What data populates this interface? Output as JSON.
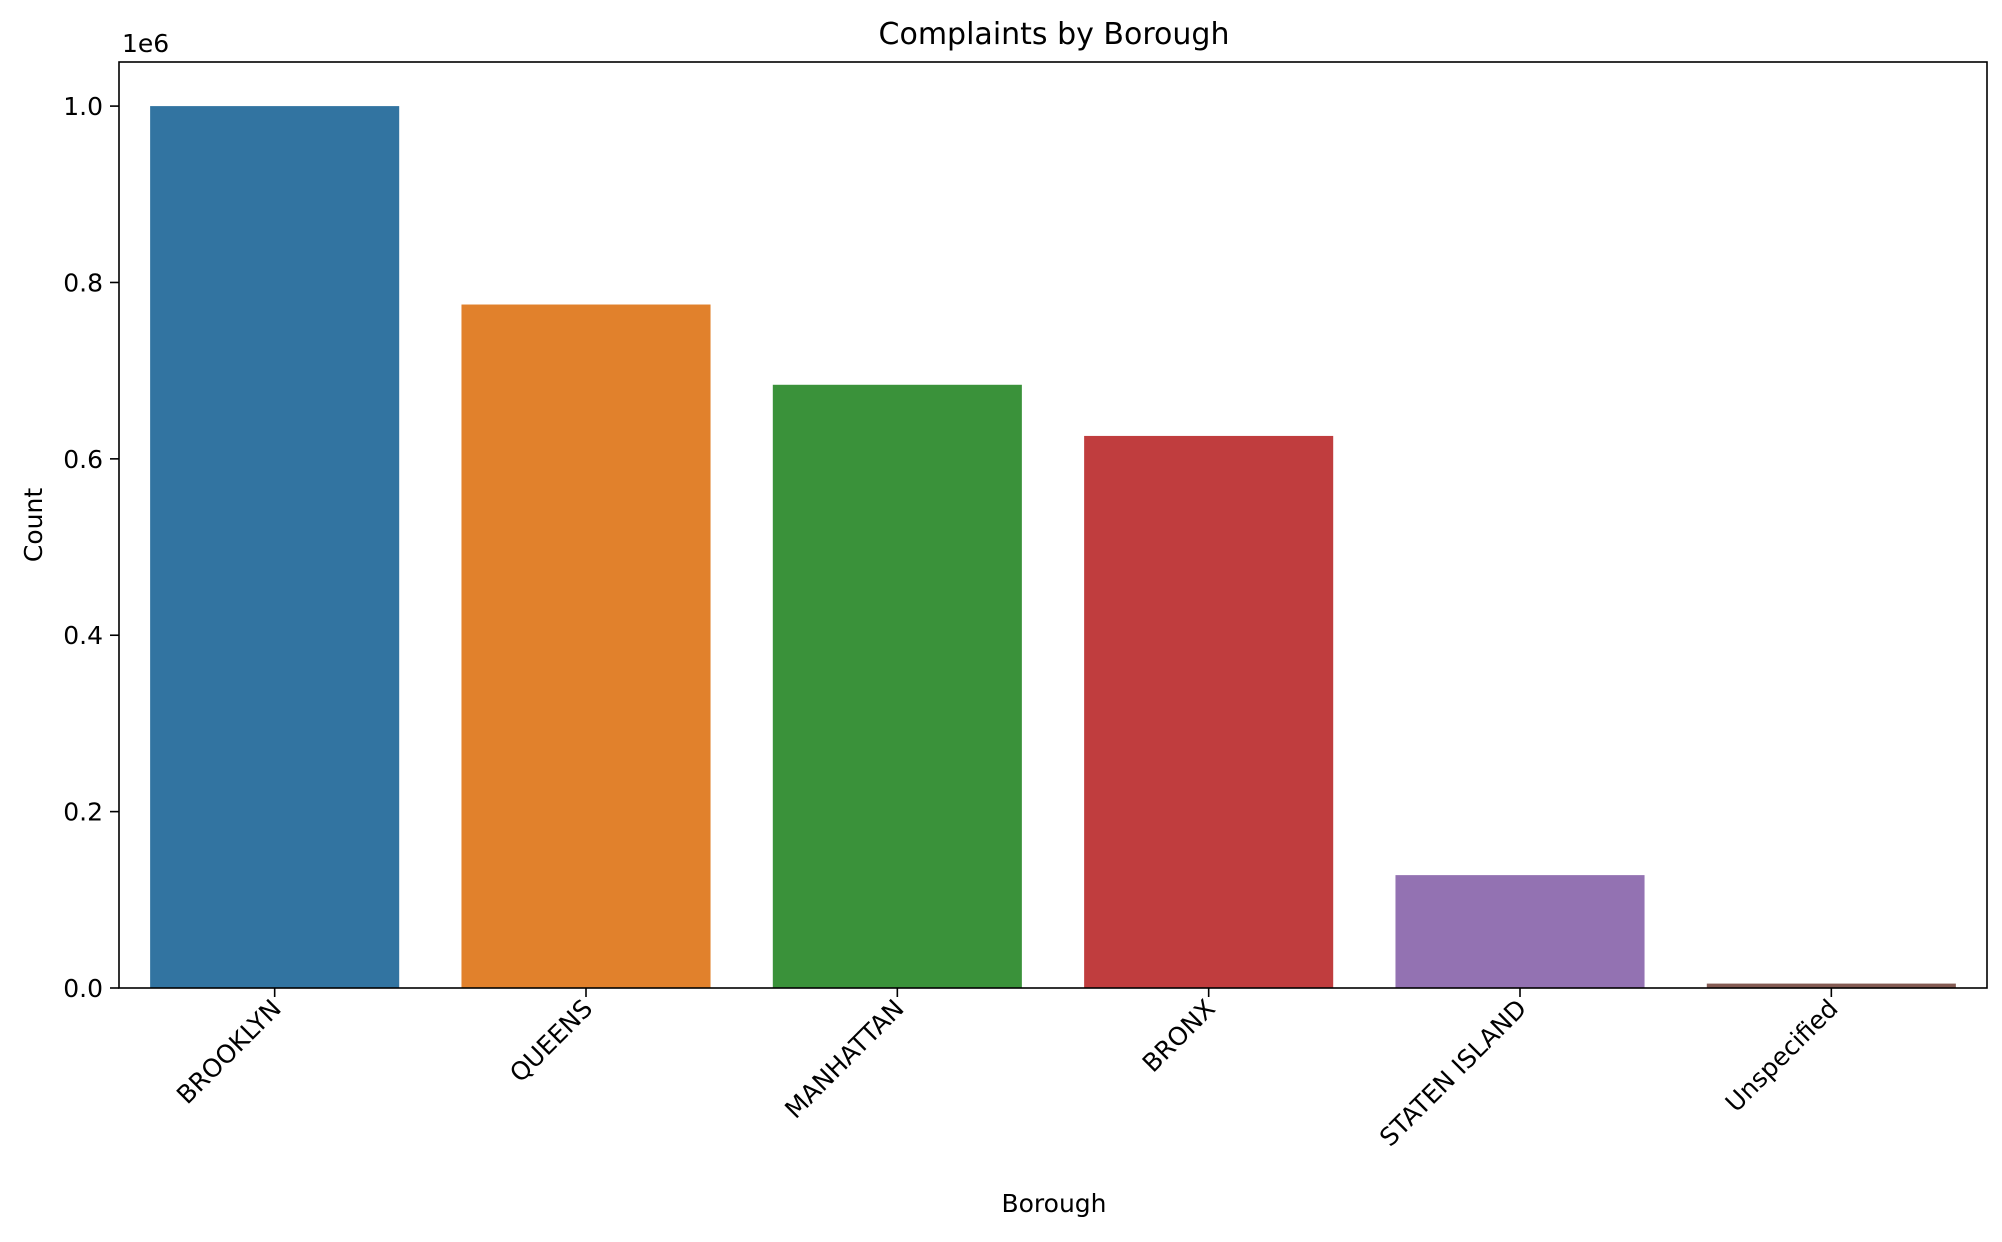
{
  "chart_data": {
    "type": "bar",
    "title": "Complaints by Borough",
    "xlabel": "Borough",
    "ylabel": "Count",
    "y_offset_label": "1e6",
    "y_scale": 1000000,
    "categories": [
      "BROOKLYN",
      "QUEENS",
      "MANHATTAN",
      "BRONX",
      "STATEN ISLAND",
      "Unspecified"
    ],
    "values": [
      1000000,
      775000,
      684000,
      626000,
      128000,
      5000
    ],
    "colors": [
      "#3274a1",
      "#e1812c",
      "#3a923a",
      "#c03d3e",
      "#9372b2",
      "#845b53"
    ],
    "ylim": [
      0,
      1050000
    ],
    "yticks": [
      0,
      200000,
      400000,
      600000,
      800000,
      1000000
    ],
    "ytick_labels": [
      "0.0",
      "0.2",
      "0.4",
      "0.6",
      "0.8",
      "1.0"
    ],
    "grid": false,
    "legend": "none"
  }
}
